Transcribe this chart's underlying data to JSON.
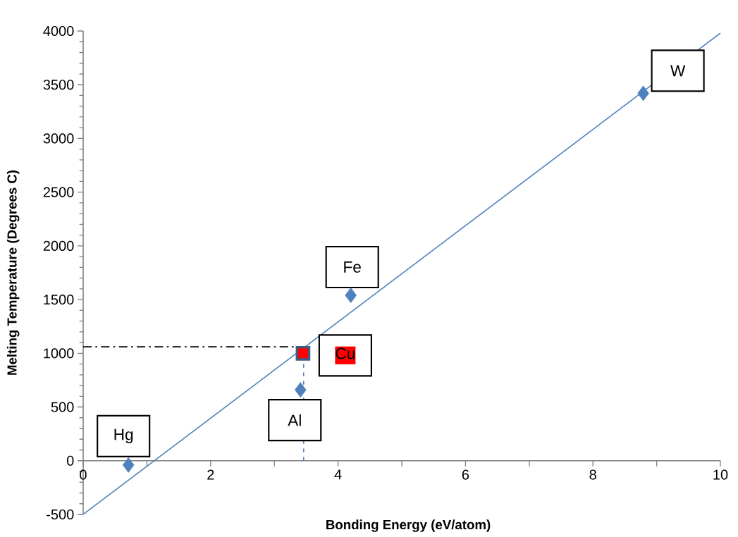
{
  "chart_data": {
    "type": "scatter",
    "xlabel": "Bonding Energy (eV/atom)",
    "ylabel": "Melting Temperature (Degrees C)",
    "xlim": [
      0,
      10
    ],
    "ylim": [
      -500,
      4000
    ],
    "xticks": [
      0,
      {
        "value": 1,
        "label": null
      },
      2,
      {
        "value": 3,
        "label": null
      },
      4,
      {
        "value": 5,
        "label": null
      },
      6,
      {
        "value": 7,
        "label": null
      },
      8,
      {
        "value": 9,
        "label": null
      },
      10
    ],
    "yticks": [
      -500,
      0,
      500,
      1000,
      1500,
      2000,
      2500,
      3000,
      3500,
      4000
    ],
    "grid": false,
    "series": [
      {
        "marker": "diamond",
        "color": "#4f81bd",
        "x": [
          0.71,
          3.41,
          4.2,
          8.79
        ],
        "values": [
          -40,
          660,
          1540,
          3420
        ]
      },
      {
        "marker": "square",
        "color": "#ff0000",
        "x": [
          3.45
        ],
        "values": [
          1000
        ]
      },
      {
        "type": "line",
        "marker": "none",
        "color": "#4f81bd",
        "x": [
          0,
          10
        ],
        "values": [
          -500,
          3980
        ]
      }
    ],
    "ref_lines": [
      {
        "axis": "y",
        "value": 1060,
        "color": "#000000",
        "line_style": "dashdot"
      },
      {
        "axis": "x",
        "value": 3.46,
        "color": "#4f81bd",
        "line_style": "dashed"
      }
    ],
    "annotations": [
      {
        "text": "Hg",
        "x": 0.71,
        "y": -40
      },
      {
        "text": "Al",
        "x": 3.41,
        "y": 660
      },
      {
        "text": "Cu",
        "x": 3.45,
        "y": 1000
      },
      {
        "text": "Fe",
        "x": 4.2,
        "y": 1540
      },
      {
        "text": "W",
        "x": 8.79,
        "y": 3420
      }
    ]
  }
}
